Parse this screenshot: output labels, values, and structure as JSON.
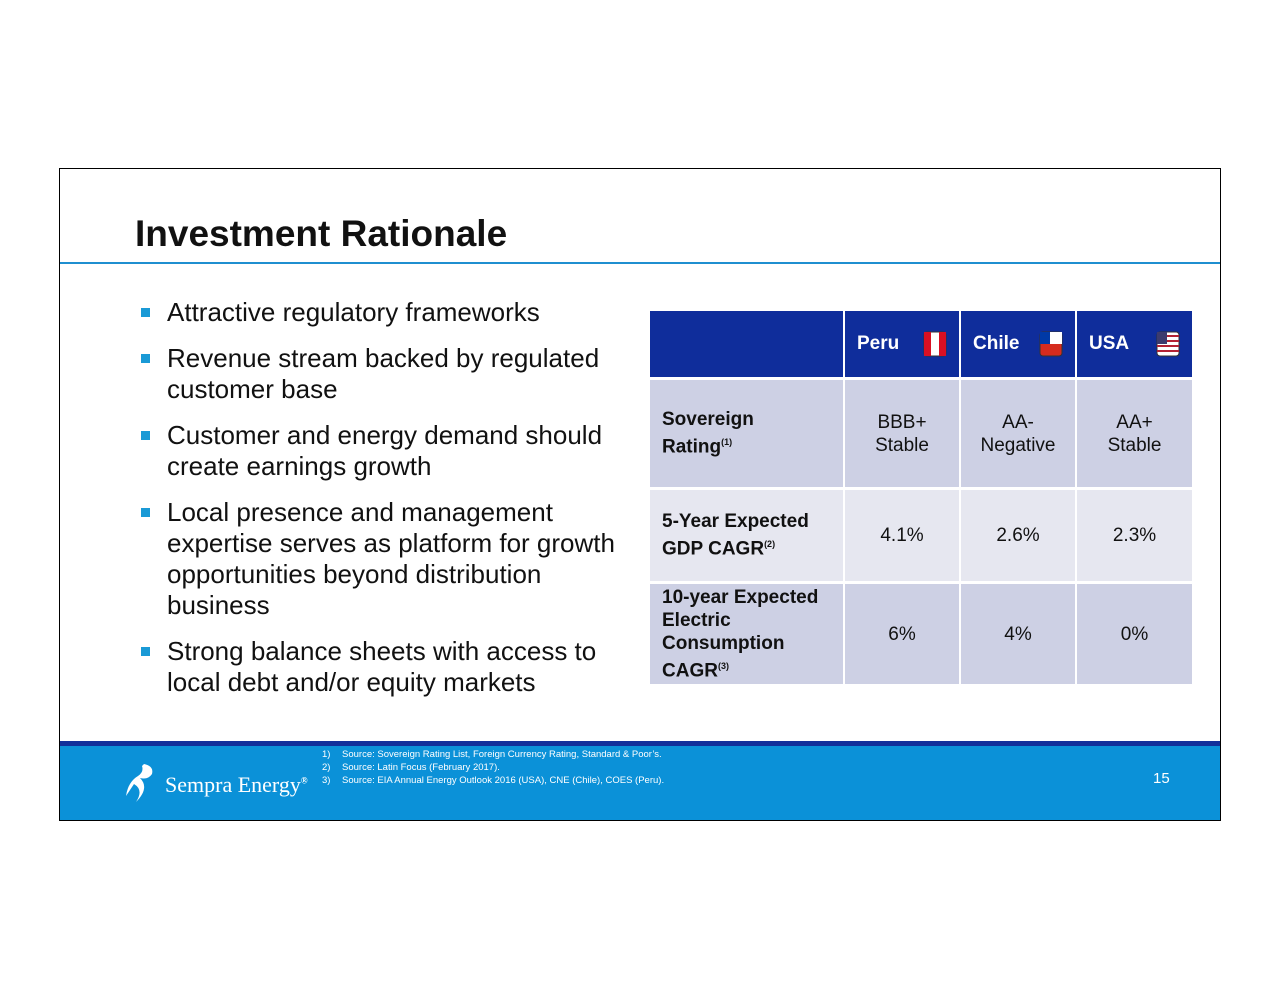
{
  "header": {
    "title": "Investment Rationale"
  },
  "bullets": [
    "Attractive regulatory frameworks",
    "Revenue stream backed by regulated customer base",
    "Customer and energy demand should create earnings growth",
    "Local presence and management expertise serves as platform for growth opportunities beyond distribution business",
    "Strong balance sheets with access to local debt and/or equity markets"
  ],
  "table": {
    "columns": [
      "Peru",
      "Chile",
      "USA"
    ],
    "rows": [
      {
        "label": "Sovereign Rating",
        "note": "(1)",
        "cells": [
          [
            "BBB+",
            "Stable"
          ],
          [
            "AA-",
            "Negative"
          ],
          [
            "AA+",
            "Stable"
          ]
        ]
      },
      {
        "label": "5-Year Expected GDP CAGR",
        "note": "(2)",
        "cells": [
          [
            "4.1%"
          ],
          [
            "2.6%"
          ],
          [
            "2.3%"
          ]
        ]
      },
      {
        "label": "10-year Expected Electric Consumption CAGR",
        "note": "(3)",
        "cells": [
          [
            "6%"
          ],
          [
            "4%"
          ],
          [
            "0%"
          ]
        ]
      }
    ]
  },
  "footer": {
    "footnotes": [
      {
        "number": "1)",
        "text": "Source: Sovereign Rating List, Foreign Currency Rating, Standard & Poor’s."
      },
      {
        "number": "2)",
        "text": "Source: Latin Focus (February 2017)."
      },
      {
        "number": "3)",
        "text": "Source: EIA Annual Energy Outlook 2016 (USA), CNE (Chile), COES (Peru)."
      }
    ],
    "logo": "Sempra Energy",
    "registered": "®",
    "page_number": "15"
  }
}
